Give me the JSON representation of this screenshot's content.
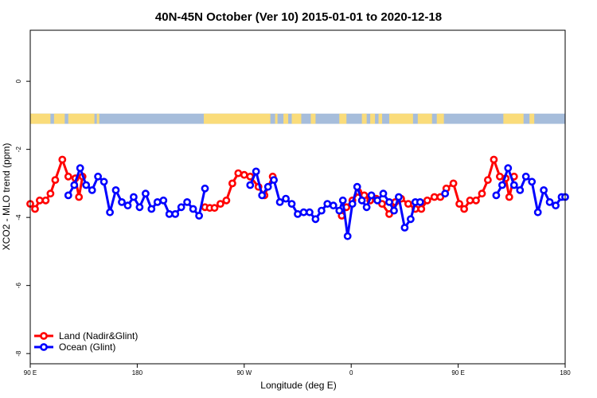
{
  "chart_data": {
    "type": "line",
    "title": "40N-45N October (Ver 10)   2015-01-01 to 2020-12-18",
    "xlabel": "Longitude (deg E)",
    "ylabel": "XCO2 - MLO trend (ppm)",
    "xlim": [
      90,
      540
    ],
    "ylim": [
      -8.3,
      1.5
    ],
    "x_ticks": [
      {
        "value": 90,
        "label": "90 E"
      },
      {
        "value": 180,
        "label": "180"
      },
      {
        "value": 270,
        "label": "90 W"
      },
      {
        "value": 360,
        "label": "0"
      },
      {
        "value": 450,
        "label": "90 E"
      },
      {
        "value": 540,
        "label": "180"
      }
    ],
    "y_ticks": [
      {
        "value": 0,
        "label": "0"
      },
      {
        "value": -2,
        "label": "-2"
      },
      {
        "value": -4,
        "label": "-4"
      },
      {
        "value": -6,
        "label": "-6"
      },
      {
        "value": -8,
        "label": "-8"
      }
    ],
    "legend_position": "bottom-left",
    "surface_strip": {
      "y_range": [
        -1.25,
        -0.95
      ],
      "ocean_color": "#A6BDDB",
      "land_color": "#FADC7A",
      "land_segments": [
        [
          90,
          107
        ],
        [
          110,
          119
        ],
        [
          122,
          144
        ],
        [
          146,
          148
        ],
        [
          236,
          292
        ],
        [
          296,
          298
        ],
        [
          303,
          307
        ],
        [
          310,
          318
        ],
        [
          326,
          330
        ],
        [
          350,
          356
        ],
        [
          369,
          373
        ],
        [
          376,
          380
        ],
        [
          383,
          386
        ],
        [
          392,
          412
        ],
        [
          416,
          428
        ],
        [
          432,
          438
        ],
        [
          488,
          505
        ],
        [
          510,
          514
        ]
      ]
    },
    "series": [
      {
        "name": "Land (Nadir&Glint)",
        "color": "#FF0000",
        "segments": [
          [
            [
              90,
              -3.6
            ],
            [
              94,
              -3.75
            ],
            [
              98,
              -3.5
            ],
            [
              103,
              -3.5
            ],
            [
              107,
              -3.3
            ],
            [
              111,
              -2.9
            ],
            [
              117,
              -2.3
            ],
            [
              122,
              -2.8
            ],
            [
              128,
              -2.85
            ],
            [
              131,
              -3.4
            ],
            [
              134,
              -2.8
            ]
          ],
          [
            [
              237,
              -3.7
            ],
            [
              241,
              -3.72
            ],
            [
              245,
              -3.72
            ],
            [
              250,
              -3.6
            ],
            [
              255,
              -3.5
            ],
            [
              260,
              -3.0
            ],
            [
              265,
              -2.7
            ],
            [
              270,
              -2.75
            ],
            [
              275,
              -2.8
            ],
            [
              282,
              -3.1
            ],
            [
              287,
              -3.35
            ],
            [
              294,
              -2.8
            ]
          ],
          [
            [
              352,
              -3.95
            ],
            [
              356,
              -3.7
            ],
            [
              361,
              -3.5
            ],
            [
              366,
              -3.25
            ],
            [
              371,
              -3.35
            ],
            [
              376,
              -3.5
            ],
            [
              381,
              -3.45
            ],
            [
              386,
              -3.6
            ],
            [
              392,
              -3.9
            ],
            [
              397,
              -3.55
            ],
            [
              402,
              -3.45
            ],
            [
              408,
              -3.6
            ],
            [
              414,
              -3.75
            ],
            [
              419,
              -3.75
            ],
            [
              424,
              -3.5
            ],
            [
              430,
              -3.4
            ],
            [
              435,
              -3.4
            ],
            [
              440,
              -3.15
            ],
            [
              446,
              -3.0
            ],
            [
              451,
              -3.6
            ],
            [
              455,
              -3.75
            ],
            [
              460,
              -3.5
            ],
            [
              465,
              -3.5
            ],
            [
              470,
              -3.3
            ],
            [
              475,
              -2.9
            ],
            [
              480,
              -2.3
            ],
            [
              485,
              -2.8
            ],
            [
              490,
              -2.85
            ],
            [
              493,
              -3.4
            ],
            [
              497,
              -2.8
            ]
          ]
        ]
      },
      {
        "name": "Ocean (Glint)",
        "color": "#0000FF",
        "segments": [
          [
            [
              122,
              -3.35
            ],
            [
              127,
              -3.05
            ],
            [
              132,
              -2.55
            ],
            [
              137,
              -3.05
            ],
            [
              142,
              -3.2
            ],
            [
              147,
              -2.8
            ],
            [
              152,
              -2.95
            ],
            [
              157,
              -3.85
            ],
            [
              162,
              -3.2
            ],
            [
              167,
              -3.55
            ],
            [
              172,
              -3.65
            ],
            [
              177,
              -3.4
            ],
            [
              182,
              -3.7
            ],
            [
              187,
              -3.3
            ],
            [
              192,
              -3.75
            ],
            [
              197,
              -3.55
            ],
            [
              202,
              -3.5
            ],
            [
              207,
              -3.9
            ],
            [
              212,
              -3.9
            ],
            [
              217,
              -3.7
            ],
            [
              222,
              -3.55
            ],
            [
              227,
              -3.75
            ],
            [
              232,
              -3.95
            ],
            [
              237,
              -3.15
            ]
          ],
          [
            [
              275,
              -3.05
            ],
            [
              280,
              -2.65
            ],
            [
              285,
              -3.35
            ],
            [
              290,
              -3.1
            ],
            [
              295,
              -2.9
            ],
            [
              300,
              -3.55
            ],
            [
              305,
              -3.45
            ],
            [
              310,
              -3.6
            ],
            [
              315,
              -3.9
            ],
            [
              320,
              -3.85
            ],
            [
              325,
              -3.85
            ],
            [
              330,
              -4.05
            ],
            [
              335,
              -3.8
            ],
            [
              340,
              -3.6
            ],
            [
              345,
              -3.65
            ],
            [
              350,
              -3.8
            ],
            [
              353,
              -3.5
            ],
            [
              357,
              -4.55
            ],
            [
              361,
              -3.6
            ],
            [
              365,
              -3.1
            ],
            [
              369,
              -3.5
            ],
            [
              373,
              -3.7
            ],
            [
              377,
              -3.35
            ],
            [
              382,
              -3.5
            ],
            [
              387,
              -3.3
            ],
            [
              392,
              -3.55
            ],
            [
              396,
              -3.8
            ],
            [
              400,
              -3.4
            ],
            [
              405,
              -4.3
            ],
            [
              410,
              -4.05
            ],
            [
              414,
              -3.55
            ],
            [
              418,
              -3.55
            ]
          ],
          [
            [
              439,
              -3.3
            ]
          ],
          [
            [
              482,
              -3.35
            ],
            [
              487,
              -3.05
            ],
            [
              492,
              -2.55
            ],
            [
              497,
              -3.05
            ],
            [
              502,
              -3.2
            ],
            [
              507,
              -2.8
            ],
            [
              512,
              -2.95
            ],
            [
              517,
              -3.85
            ],
            [
              522,
              -3.2
            ],
            [
              527,
              -3.55
            ],
            [
              532,
              -3.65
            ],
            [
              537,
              -3.4
            ],
            [
              540,
              -3.4
            ]
          ]
        ]
      }
    ]
  }
}
